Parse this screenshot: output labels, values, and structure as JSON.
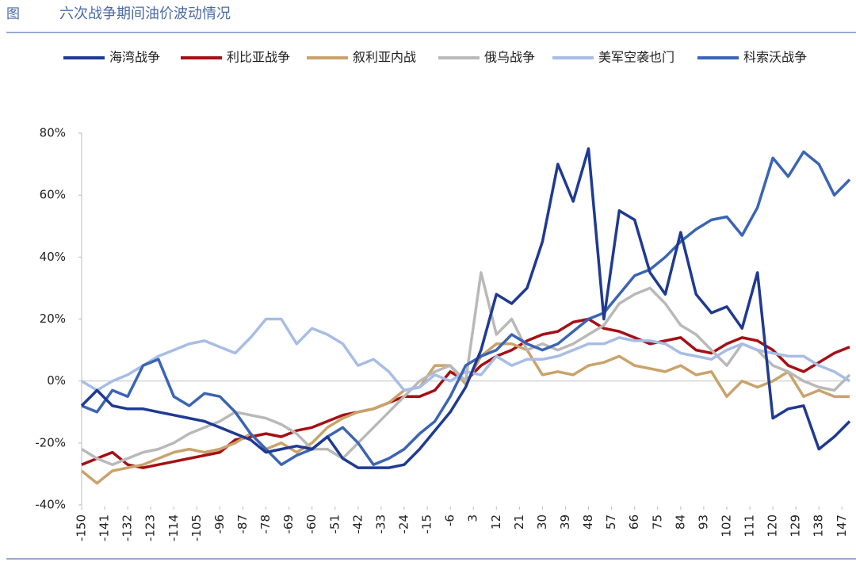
{
  "chart_data": {
    "type": "line",
    "figure_label": "图",
    "title": "六次战争期间油价波动情况",
    "x": [
      -150,
      -144,
      -138,
      -132,
      -126,
      -120,
      -114,
      -108,
      -102,
      -96,
      -90,
      -84,
      -78,
      -72,
      -66,
      -60,
      -54,
      -48,
      -42,
      -36,
      -30,
      -24,
      -18,
      -12,
      -6,
      0,
      6,
      12,
      18,
      24,
      30,
      36,
      42,
      48,
      54,
      60,
      66,
      72,
      78,
      84,
      90,
      96,
      102,
      108,
      114,
      120,
      126,
      132,
      138,
      144,
      150
    ],
    "series": [
      {
        "name": "海湾战争",
        "color": "#1f3a93",
        "values": [
          -8,
          -3,
          -8,
          -9,
          -9,
          -10,
          -11,
          -12,
          -13,
          -15,
          -17,
          -19,
          -23,
          -22,
          -21,
          -22,
          -18,
          -25,
          -28,
          -28,
          -28,
          -27,
          -22,
          -16,
          -10,
          -2,
          10,
          28,
          25,
          30,
          45,
          70,
          58,
          75,
          20,
          55,
          52,
          35,
          28,
          48,
          28,
          22,
          24,
          17,
          35,
          -12,
          -9,
          -8,
          -22,
          -18,
          -13
        ]
      },
      {
        "name": "利比亚战争",
        "color": "#a50f15",
        "values": [
          -27,
          -25,
          -23,
          -27,
          -28,
          -27,
          -26,
          -25,
          -24,
          -23,
          -19,
          -18,
          -17,
          -18,
          -16,
          -15,
          -13,
          -11,
          -10,
          -9,
          -7,
          -5,
          -5,
          -3,
          3,
          0,
          5,
          8,
          10,
          13,
          15,
          16,
          19,
          20,
          17,
          16,
          14,
          12,
          13,
          14,
          10,
          9,
          12,
          14,
          13,
          10,
          5,
          3,
          6,
          9,
          11
        ]
      },
      {
        "name": "叙利亚内战",
        "color": "#c9a36b",
        "values": [
          -29,
          -33,
          -29,
          -28,
          -27,
          -25,
          -23,
          -22,
          -23,
          -22,
          -20,
          -17,
          -22,
          -20,
          -23,
          -20,
          -15,
          -12,
          -10,
          -9,
          -7,
          -3,
          -2,
          5,
          5,
          -1,
          8,
          12,
          12,
          10,
          2,
          3,
          2,
          5,
          6,
          8,
          5,
          4,
          3,
          5,
          2,
          3,
          -5,
          0,
          -2,
          0,
          3,
          -5,
          -3,
          -5,
          -5
        ]
      },
      {
        "name": "俄乌战争",
        "color": "#b9b9b9",
        "values": [
          -22,
          -25,
          -27,
          -25,
          -23,
          -22,
          -20,
          -17,
          -15,
          -13,
          -10,
          -11,
          -12,
          -14,
          -17,
          -22,
          -22,
          -25,
          -20,
          -15,
          -10,
          -5,
          0,
          3,
          5,
          0,
          35,
          15,
          20,
          10,
          12,
          10,
          12,
          15,
          18,
          25,
          28,
          30,
          25,
          18,
          15,
          10,
          5,
          12,
          10,
          5,
          3,
          0,
          -2,
          -3,
          2
        ]
      },
      {
        "name": "美军空袭也门",
        "color": "#a7bde6",
        "values": [
          0,
          -3,
          0,
          2,
          5,
          8,
          10,
          12,
          13,
          11,
          9,
          14,
          20,
          20,
          12,
          17,
          15,
          12,
          5,
          7,
          3,
          -3,
          -2,
          2,
          0,
          3,
          2,
          8,
          5,
          7,
          7,
          8,
          10,
          12,
          12,
          14,
          13,
          13,
          12,
          9,
          8,
          7,
          10,
          12,
          10,
          9,
          8,
          8,
          5,
          3,
          0
        ]
      },
      {
        "name": "科索沃战争",
        "color": "#3b64b4",
        "values": [
          -8,
          -10,
          -3,
          -5,
          5,
          7,
          -5,
          -8,
          -4,
          -5,
          -10,
          -17,
          -22,
          -27,
          -24,
          -22,
          -18,
          -15,
          -20,
          -27,
          -25,
          -22,
          -17,
          -13,
          -5,
          5,
          8,
          10,
          15,
          12,
          10,
          12,
          16,
          20,
          22,
          28,
          34,
          36,
          40,
          45,
          49,
          52,
          53,
          47,
          56,
          72,
          66,
          74,
          70,
          60,
          65
        ]
      }
    ],
    "xlim": [
      -150,
      150
    ],
    "xticks": [
      -150,
      -141,
      -132,
      -123,
      -114,
      -105,
      -96,
      -87,
      -78,
      -69,
      -60,
      -51,
      -42,
      -33,
      -24,
      -15,
      -6,
      3,
      12,
      21,
      30,
      39,
      48,
      57,
      66,
      75,
      84,
      93,
      102,
      111,
      120,
      129,
      138,
      147
    ],
    "ylim": [
      -40,
      80
    ],
    "yticks": [
      {
        "value": -40,
        "label": "-40%"
      },
      {
        "value": -20,
        "label": "-20%"
      },
      {
        "value": 0,
        "label": "0%"
      },
      {
        "value": 20,
        "label": "20%"
      },
      {
        "value": 40,
        "label": "40%"
      },
      {
        "value": 60,
        "label": "60%"
      },
      {
        "value": 80,
        "label": "80%"
      }
    ],
    "legend": "top"
  }
}
